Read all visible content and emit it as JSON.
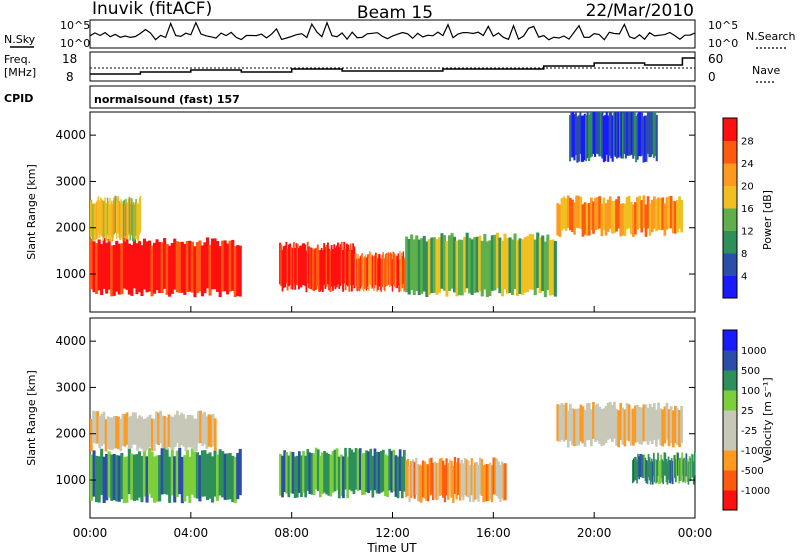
{
  "header": {
    "station": "Inuvik (fitACF)",
    "beam": "Beam 15",
    "date": "22/Mar/2010"
  },
  "panel_labels": {
    "nsky": "N.Sky",
    "nsearch": "N.Search",
    "freq_line1": "Freq.",
    "freq_line2": "[MHz]",
    "nave": "Nave",
    "cpid": "CPID",
    "cpid_value": "normalsound (fast) 157"
  },
  "colors": {
    "power_scale": [
      "#1a1aff",
      "#2b4fa8",
      "#2f8f5a",
      "#5fb04a",
      "#f0c020",
      "#ff9a20",
      "#ff5a10",
      "#ff1010"
    ],
    "velocity_scale": [
      "#ff1010",
      "#ff5a10",
      "#ff9a20",
      "#c8c8b8",
      "#c8c8b8",
      "#7ccf3a",
      "#2f8f5a",
      "#2b4fa8",
      "#1a1aff"
    ]
  },
  "chart_data": [
    {
      "type": "line",
      "name": "noise",
      "left_ticks": [
        "10^5",
        "10^0"
      ],
      "right_ticks": [
        "10^5",
        "10^0"
      ],
      "ylim": [
        0,
        5
      ]
    },
    {
      "type": "line",
      "name": "freq-nave",
      "left_ticks": [
        "18",
        "8"
      ],
      "right_ticks": [
        "60",
        "0"
      ],
      "ylim": [
        8,
        18
      ]
    },
    {
      "type": "heatmap",
      "name": "power",
      "ylabel": "Slant Range [km]",
      "colorbar_label": "Power [dB]",
      "colorbar_ticks": [
        "4",
        "8",
        "12",
        "16",
        "20",
        "24",
        "28"
      ],
      "yticks": [
        "1000",
        "2000",
        "3000",
        "4000"
      ],
      "ylim": [
        180,
        4500
      ],
      "xlim": [
        0,
        24
      ],
      "bands": [
        {
          "t0": 0.0,
          "t1": 6.0,
          "r0": 600,
          "r1": 1700,
          "level": 7
        },
        {
          "t0": 0.0,
          "t1": 2.0,
          "r0": 1800,
          "r1": 2600,
          "level": 4
        },
        {
          "t0": 7.5,
          "t1": 10.5,
          "r0": 700,
          "r1": 1600,
          "level": 7
        },
        {
          "t0": 10.5,
          "t1": 12.5,
          "r0": 700,
          "r1": 1400,
          "level": 6
        },
        {
          "t0": 12.5,
          "t1": 18.5,
          "r0": 600,
          "r1": 1800,
          "level": 3
        },
        {
          "t0": 18.5,
          "t1": 23.5,
          "r0": 1900,
          "r1": 2600,
          "level": 5
        },
        {
          "t0": 19.0,
          "t1": 22.5,
          "r0": 3500,
          "r1": 4500,
          "level": 1
        }
      ]
    },
    {
      "type": "heatmap",
      "name": "velocity",
      "ylabel": "Slant Range [km]",
      "colorbar_label": "Velocity [m s⁻¹]",
      "colorbar_ticks": [
        "-1000",
        "-500",
        "-100",
        "-25",
        "25",
        "100",
        "500",
        "1000"
      ],
      "yticks": [
        "1000",
        "2000",
        "3000",
        "4000"
      ],
      "ylim": [
        180,
        4500
      ],
      "xlim": [
        0,
        24
      ],
      "bands": [
        {
          "t0": 0.0,
          "t1": 6.0,
          "r0": 600,
          "r1": 1600,
          "level": 6
        },
        {
          "t0": 0.0,
          "t1": 5.0,
          "r0": 1700,
          "r1": 2400,
          "level": 3
        },
        {
          "t0": 7.5,
          "t1": 12.5,
          "r0": 700,
          "r1": 1600,
          "level": 6
        },
        {
          "t0": 12.5,
          "t1": 16.5,
          "r0": 600,
          "r1": 1400,
          "level": 2
        },
        {
          "t0": 18.5,
          "t1": 23.5,
          "r0": 1800,
          "r1": 2600,
          "level": 3
        },
        {
          "t0": 21.5,
          "t1": 24.0,
          "r0": 1000,
          "r1": 1500,
          "level": 6
        }
      ]
    }
  ],
  "x_axis": {
    "ticks": [
      "00:00",
      "04:00",
      "08:00",
      "12:00",
      "16:00",
      "20:00",
      "00:00"
    ],
    "label": "Time UT"
  }
}
